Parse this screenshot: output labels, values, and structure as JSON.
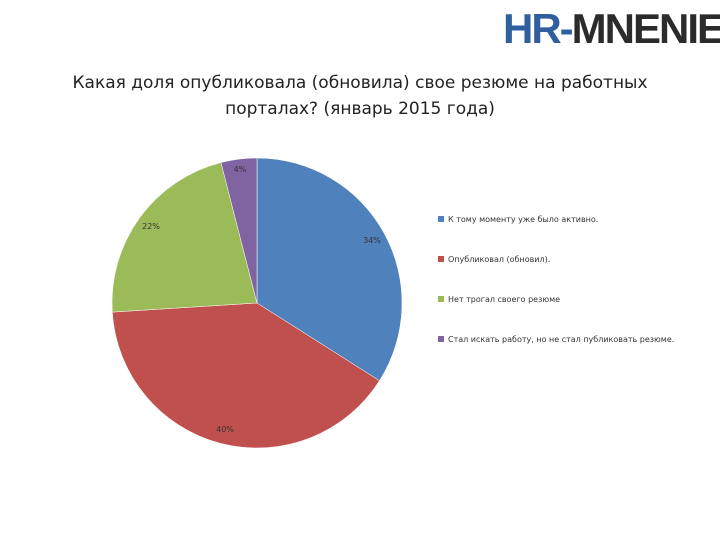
{
  "logo": {
    "hr": "HR",
    "dash": "-",
    "rest": "MNENIE"
  },
  "title_line1": "Какая доля опубликовала (обновила) свое резюме на работных",
  "title_line2": "порталах? (январь 2015 года)",
  "chart_data": {
    "type": "pie",
    "title": "Какая доля опубликовала (обновила) свое резюме на работных порталах? (январь 2015 года)",
    "series": [
      {
        "name": "К тому моменту уже было активно.",
        "value": 34,
        "label": "34%",
        "color": "#4f81bd"
      },
      {
        "name": "Опубликовал (обновил).",
        "value": 40,
        "label": "40%",
        "color": "#c0504d"
      },
      {
        "name": "Нет трогал своего резюме",
        "value": 22,
        "label": "22%",
        "color": "#9bbb59"
      },
      {
        "name": "Стал искать работу, но не стал публиковать резюме.",
        "value": 4,
        "label": "4%",
        "color": "#8064a2"
      }
    ],
    "legend_position": "right"
  }
}
